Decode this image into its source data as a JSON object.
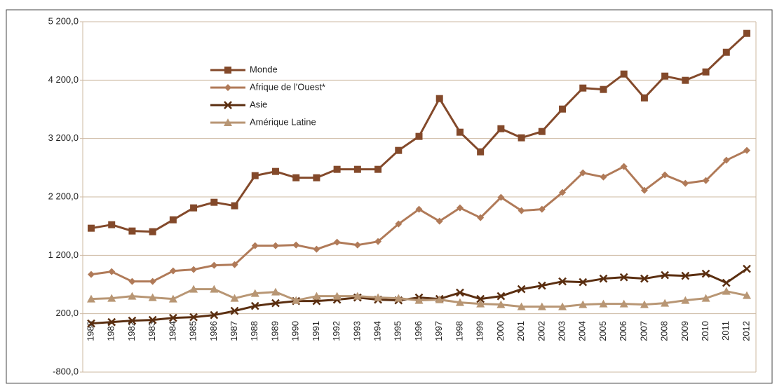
{
  "chart_data": {
    "type": "line",
    "categories": [
      "1980",
      "1981",
      "1982",
      "1983",
      "1984",
      "1985",
      "1986",
      "1987",
      "1988",
      "1989",
      "1990",
      "1991",
      "1992",
      "1993",
      "1994",
      "1995",
      "1996",
      "1997",
      "1998",
      "1999",
      "2000",
      "2001",
      "2002",
      "2003",
      "2004",
      "2005",
      "2006",
      "2007",
      "2008",
      "2009",
      "2010",
      "2011",
      "2012"
    ],
    "series": [
      {
        "name": "Monde",
        "color": "#83492a",
        "marker": "square",
        "values": [
          1664,
          1724,
          1616,
          1604,
          1808,
          2012,
          2108,
          2048,
          2564,
          2636,
          2528,
          2528,
          2672,
          2672,
          2672,
          2996,
          3236,
          3884,
          3308,
          2972,
          3368,
          3212,
          3320,
          3704,
          4064,
          4040,
          4304,
          3896,
          4268,
          4196,
          4340,
          4676,
          5000
        ]
      },
      {
        "name": "Afrique de l'Ouest*",
        "color": "#b07a58",
        "marker": "diamond",
        "values": [
          872,
          920,
          752,
          752,
          932,
          956,
          1028,
          1040,
          1364,
          1364,
          1376,
          1304,
          1424,
          1376,
          1436,
          1736,
          1988,
          1784,
          2012,
          1844,
          2192,
          1964,
          1988,
          2276,
          2612,
          2540,
          2720,
          2312,
          2576,
          2432,
          2480,
          2828,
          2996
        ]
      },
      {
        "name": "Asie",
        "color": "#5a2e10",
        "marker": "x",
        "values": [
          32,
          56,
          80,
          92,
          128,
          140,
          176,
          248,
          332,
          380,
          416,
          416,
          440,
          476,
          440,
          428,
          476,
          452,
          560,
          452,
          500,
          620,
          680,
          752,
          740,
          800,
          824,
          800,
          860,
          848,
          884,
          728,
          968
        ]
      },
      {
        "name": "Amérique Latine",
        "color": "#b89674",
        "marker": "triangle",
        "values": [
          452,
          464,
          500,
          476,
          452,
          620,
          620,
          464,
          548,
          572,
          428,
          500,
          500,
          500,
          476,
          464,
          428,
          440,
          392,
          368,
          356,
          320,
          320,
          320,
          356,
          368,
          368,
          356,
          380,
          428,
          464,
          584,
          512
        ]
      }
    ],
    "ylim": [
      -800,
      5200
    ],
    "yticks": [
      {
        "value": -800,
        "label": "-800,0"
      },
      {
        "value": 200,
        "label": "200,0"
      },
      {
        "value": 1200,
        "label": "1 200,0"
      },
      {
        "value": 2200,
        "label": "2 200,0"
      },
      {
        "value": 3200,
        "label": "3 200,0"
      },
      {
        "value": 4200,
        "label": "4 200,0"
      },
      {
        "value": 5200,
        "label": "5 200,0"
      }
    ],
    "grid": true,
    "legend": "upper left"
  }
}
